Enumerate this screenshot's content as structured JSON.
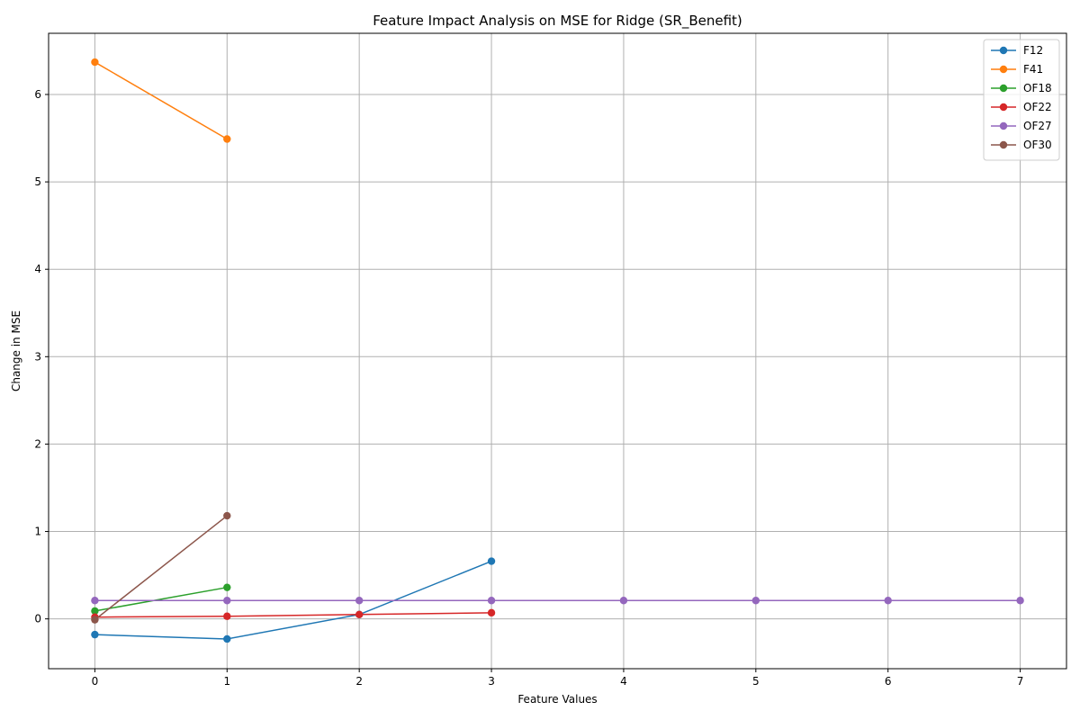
{
  "chart_data": {
    "type": "line",
    "title": "Feature Impact Analysis on MSE for Ridge (SR_Benefit)",
    "xlabel": "Feature Values",
    "ylabel": "Change in MSE",
    "xlim": [
      -0.35,
      7.35
    ],
    "ylim": [
      -0.57,
      6.7
    ],
    "xticks": [
      0,
      1,
      2,
      3,
      4,
      5,
      6,
      7
    ],
    "yticks": [
      0,
      1,
      2,
      3,
      4,
      5,
      6
    ],
    "grid": true,
    "legend_position": "top-right",
    "series": [
      {
        "name": "F12",
        "color": "#1f77b4",
        "x": [
          0,
          1,
          2,
          3
        ],
        "y": [
          -0.18,
          -0.23,
          0.05,
          0.66
        ]
      },
      {
        "name": "F41",
        "color": "#ff7f0e",
        "x": [
          0,
          1
        ],
        "y": [
          6.37,
          5.49
        ]
      },
      {
        "name": "OF18",
        "color": "#2ca02c",
        "x": [
          0,
          1
        ],
        "y": [
          0.09,
          0.36
        ]
      },
      {
        "name": "OF22",
        "color": "#d62728",
        "x": [
          0,
          1,
          2,
          3
        ],
        "y": [
          0.02,
          0.03,
          0.05,
          0.07
        ]
      },
      {
        "name": "OF27",
        "color": "#9467bd",
        "x": [
          0,
          1,
          2,
          3,
          4,
          5,
          6,
          7
        ],
        "y": [
          0.21,
          0.21,
          0.21,
          0.21,
          0.21,
          0.21,
          0.21,
          0.21
        ]
      },
      {
        "name": "OF30",
        "color": "#8c564b",
        "x": [
          0,
          1
        ],
        "y": [
          -0.01,
          1.18
        ]
      }
    ]
  }
}
